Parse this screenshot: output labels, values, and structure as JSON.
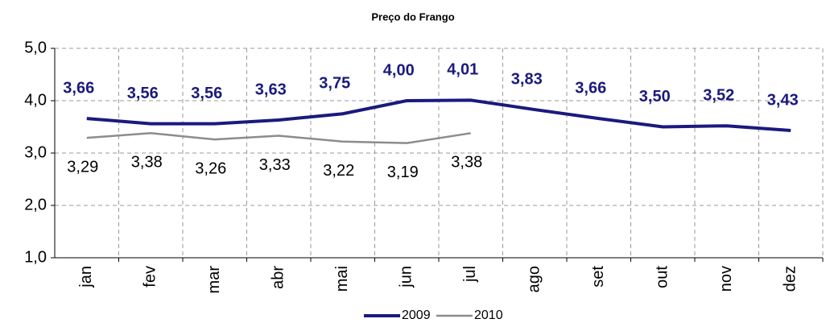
{
  "chart_data": {
    "type": "line",
    "title": "Preço do Frango",
    "categories": [
      "jan",
      "fev",
      "mar",
      "abr",
      "mai",
      "jun",
      "jul",
      "ago",
      "set",
      "out",
      "nov",
      "dez"
    ],
    "series": [
      {
        "name": "2009",
        "color": "#1a1a7e",
        "values": [
          3.66,
          3.56,
          3.56,
          3.63,
          3.75,
          4.0,
          4.01,
          3.83,
          3.66,
          3.5,
          3.52,
          3.43
        ],
        "value_labels": [
          "3,66",
          "3,56",
          "3,56",
          "3,63",
          "3,75",
          "4,00",
          "4,01",
          "3,83",
          "3,66",
          "3,50",
          "3,52",
          "3,43"
        ]
      },
      {
        "name": "2010",
        "color": "#8c8c8c",
        "values": [
          3.29,
          3.38,
          3.26,
          3.33,
          3.22,
          3.19,
          3.38,
          null,
          null,
          null,
          null,
          null
        ],
        "value_labels": [
          "3,29",
          "3,38",
          "3,26",
          "3,33",
          "3,22",
          "3,19",
          "3,38",
          null,
          null,
          null,
          null,
          null
        ]
      }
    ],
    "ylim": [
      1,
      5
    ],
    "yticks": [
      {
        "value": 1,
        "label": "1,0"
      },
      {
        "value": 2,
        "label": "2,0"
      },
      {
        "value": 3,
        "label": "3,0"
      },
      {
        "value": 4,
        "label": "4,0"
      },
      {
        "value": 5,
        "label": "5,0"
      }
    ],
    "grid": true,
    "legend": "bottom"
  }
}
